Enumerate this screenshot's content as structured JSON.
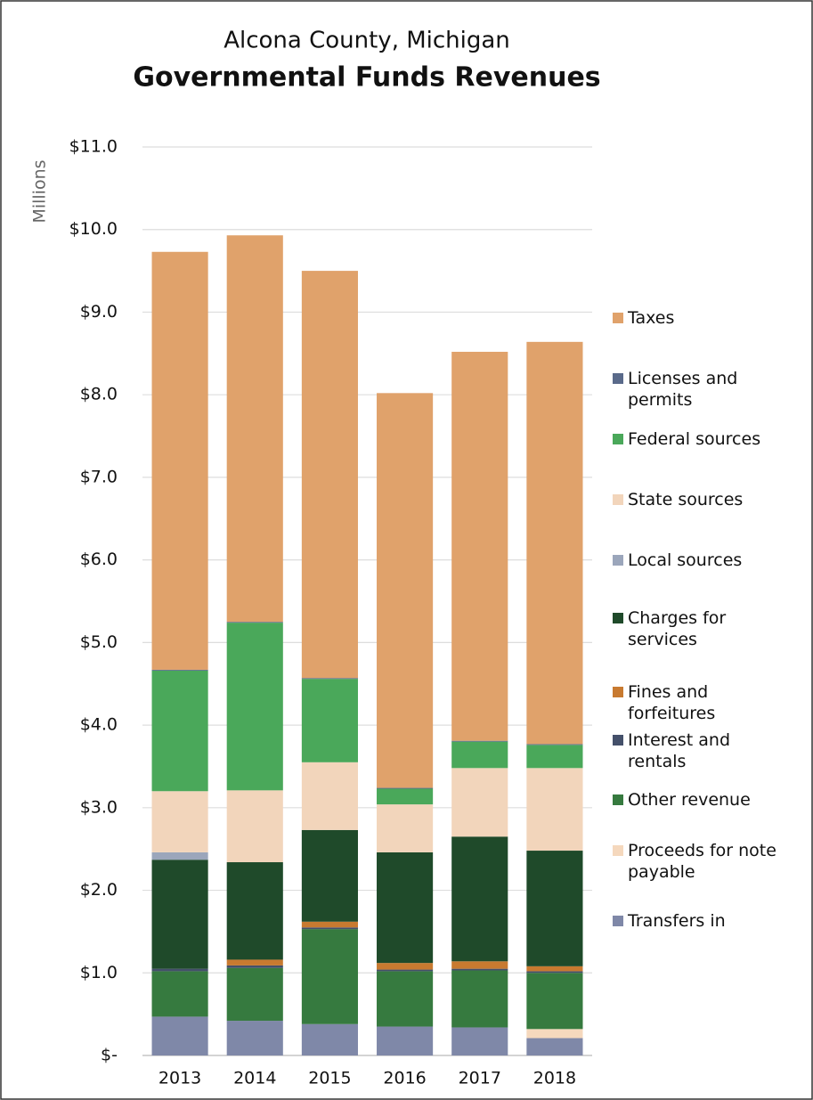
{
  "chart_data": {
    "type": "stacked_bar",
    "title": "Alcona County, Michigan",
    "subtitle": "Governmental Funds Revenues",
    "y_label": "Millions",
    "categories": [
      "2013",
      "2014",
      "2015",
      "2016",
      "2017",
      "2018"
    ],
    "ylim": [
      0,
      11
    ],
    "yticks": [
      {
        "value": 0,
        "label": "$-"
      },
      {
        "value": 1,
        "label": "$1.0"
      },
      {
        "value": 2,
        "label": "$2.0"
      },
      {
        "value": 3,
        "label": "$3.0"
      },
      {
        "value": 4,
        "label": "$4.0"
      },
      {
        "value": 5,
        "label": "$5.0"
      },
      {
        "value": 6,
        "label": "$6.0"
      },
      {
        "value": 7,
        "label": "$7.0"
      },
      {
        "value": 8,
        "label": "$8.0"
      },
      {
        "value": 9,
        "label": "$9.0"
      },
      {
        "value": 10,
        "label": "$10.0"
      },
      {
        "value": 11,
        "label": "$11.0"
      }
    ],
    "grid": true,
    "legend": "right",
    "series": [
      {
        "name": "Transfers in",
        "color": "#7f88a8",
        "values": [
          0.47,
          0.42,
          0.38,
          0.35,
          0.34,
          0.21
        ]
      },
      {
        "name": "Proceeds for note payable",
        "color": "#f5d8bd",
        "values": [
          0,
          0,
          0,
          0,
          0,
          0.11
        ]
      },
      {
        "name": "Other revenue",
        "color": "#367a3f",
        "values": [
          0.55,
          0.64,
          1.15,
          0.67,
          0.69,
          0.68
        ]
      },
      {
        "name": "Interest and rentals",
        "color": "#44506a",
        "values": [
          0.03,
          0.03,
          0.02,
          0.02,
          0.02,
          0.02
        ]
      },
      {
        "name": "Fines and forfeitures",
        "color": "#c87a30",
        "values": [
          0,
          0.07,
          0.07,
          0.08,
          0.09,
          0.06
        ]
      },
      {
        "name": "Charges for services",
        "color": "#1f4a2a",
        "values": [
          1.32,
          1.18,
          1.11,
          1.34,
          1.51,
          1.4
        ]
      },
      {
        "name": "Local sources",
        "color": "#9ba6bb",
        "values": [
          0.09,
          0,
          0,
          0,
          0,
          0
        ]
      },
      {
        "name": "State sources",
        "color": "#f2d5bb",
        "values": [
          0.74,
          0.87,
          0.82,
          0.58,
          0.83,
          1.0
        ]
      },
      {
        "name": "Federal sources",
        "color": "#4aa85a",
        "values": [
          1.46,
          2.03,
          1.01,
          0.19,
          0.32,
          0.28
        ]
      },
      {
        "name": "Licenses and permits",
        "color": "#5a6a8a",
        "values": [
          0.01,
          0.01,
          0.01,
          0.01,
          0.01,
          0.01
        ]
      },
      {
        "name": "Taxes",
        "color": "#e0a26b",
        "values": [
          5.06,
          4.68,
          4.93,
          4.78,
          4.71,
          4.87
        ]
      }
    ]
  }
}
